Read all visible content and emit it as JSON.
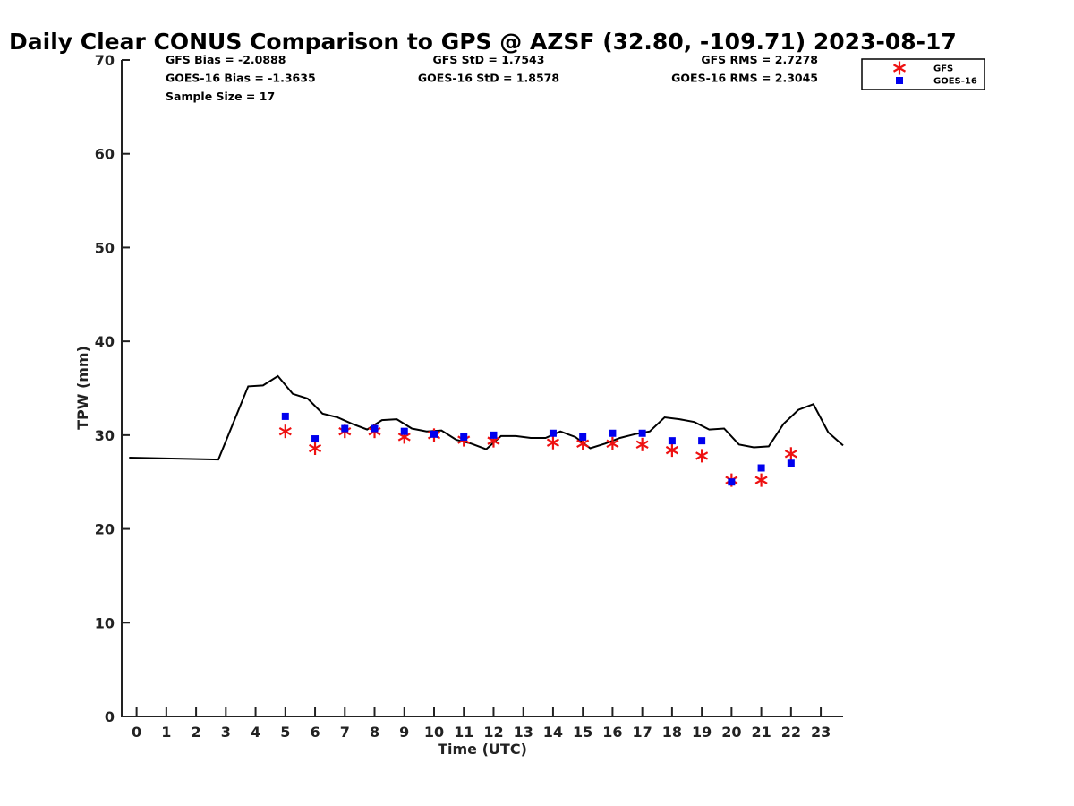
{
  "chart_data": {
    "type": "scatter",
    "title": "Daily Clear CONUS Comparison to GPS @ AZSF (32.80, -109.71) 2023-08-17",
    "xlabel": "Time (UTC)",
    "ylabel": "TPW (mm)",
    "xlim": [
      -0.5,
      23.75
    ],
    "ylim": [
      0,
      70
    ],
    "xticks": [
      "0",
      "1",
      "2",
      "3",
      "4",
      "5",
      "6",
      "7",
      "8",
      "9",
      "10",
      "11",
      "12",
      "13",
      "14",
      "15",
      "16",
      "17",
      "18",
      "19",
      "20",
      "21",
      "22",
      "23"
    ],
    "yticks": [
      "0",
      "10",
      "20",
      "30",
      "40",
      "50",
      "60",
      "70"
    ],
    "grid": false,
    "legend_position": "top-right",
    "stats": [
      [
        "GFS Bias = -2.0888",
        "GFS StD = 1.7543",
        "GFS RMS = 2.7278"
      ],
      [
        "GOES-16 Bias = -1.3635",
        "GOES-16 StD = 1.8578",
        "GOES-16 RMS = 2.3045"
      ],
      [
        "Sample Size = 17"
      ]
    ],
    "gps_line": {
      "color": "#000000",
      "x": [
        -0.25,
        2.75,
        3.75,
        4.25,
        4.75,
        5.25,
        5.75,
        6.25,
        6.75,
        7.25,
        7.75,
        8.25,
        8.75,
        9.25,
        9.75,
        10.25,
        10.75,
        11.25,
        11.75,
        12.25,
        12.75,
        13.25,
        13.75,
        14.25,
        14.75,
        15.25,
        15.75,
        16.25,
        16.75,
        17.25,
        17.75,
        18.25,
        18.75,
        19.25,
        19.75,
        20.25,
        20.75,
        21.25,
        21.75,
        22.25,
        22.75,
        23.25,
        23.75
      ],
      "y": [
        27.6,
        27.4,
        35.2,
        35.3,
        36.3,
        34.4,
        33.9,
        32.3,
        31.9,
        31.2,
        30.6,
        31.6,
        31.7,
        30.7,
        30.4,
        30.5,
        29.5,
        29.1,
        28.5,
        29.9,
        29.9,
        29.7,
        29.7,
        30.4,
        29.8,
        28.6,
        29.1,
        29.7,
        30.1,
        30.4,
        31.9,
        31.7,
        31.4,
        30.6,
        30.7,
        29.0,
        28.7,
        28.8,
        31.2,
        32.7,
        33.3,
        30.3,
        28.9
      ]
    },
    "series": [
      {
        "name": "GFS",
        "marker": "asterisk",
        "color": "#ee1111",
        "x": [
          5,
          6,
          7,
          8,
          9,
          10,
          11,
          12,
          14,
          15,
          16,
          17,
          18,
          19,
          20,
          21,
          22
        ],
        "y": [
          30.4,
          28.6,
          30.4,
          30.4,
          29.8,
          30.0,
          29.5,
          29.4,
          29.2,
          29.1,
          29.1,
          29.0,
          28.4,
          27.8,
          25.2,
          25.2,
          28.0
        ]
      },
      {
        "name": "GOES-16",
        "marker": "square",
        "color": "#0000ee",
        "x": [
          5,
          6,
          7,
          8,
          9,
          10,
          11,
          12,
          14,
          15,
          16,
          17,
          18,
          19,
          20,
          21,
          22
        ],
        "y": [
          32.0,
          29.6,
          30.7,
          30.7,
          30.4,
          30.1,
          29.8,
          30.0,
          30.2,
          29.8,
          30.2,
          30.2,
          29.4,
          29.4,
          25.0,
          26.5,
          27.0
        ]
      }
    ]
  }
}
